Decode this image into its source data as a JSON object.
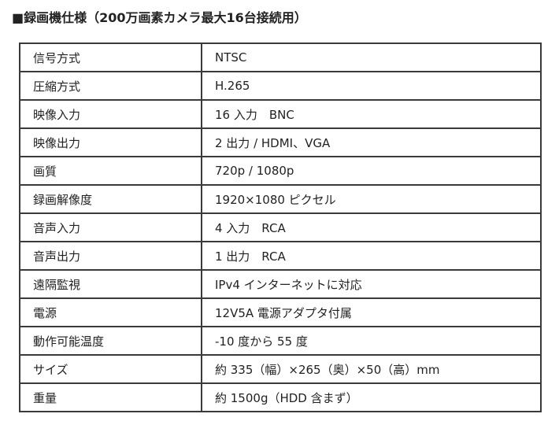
{
  "title": "■録画機仕様（200万画素カメラ最大16台接続用）",
  "specs": [
    {
      "label": "信号方式",
      "value": "NTSC"
    },
    {
      "label": "圧縮方式",
      "value": "H.265"
    },
    {
      "label": "映像入力",
      "value": "16 入力　BNC"
    },
    {
      "label": "映像出力",
      "value": "2 出力 / HDMI、VGA"
    },
    {
      "label": "画質",
      "value": "720p / 1080p"
    },
    {
      "label": "録画解像度",
      "value": "1920×1080 ピクセル"
    },
    {
      "label": "音声入力",
      "value": "4 入力　RCA"
    },
    {
      "label": "音声出力",
      "value": "1 出力　RCA"
    },
    {
      "label": "遠隔監視",
      "value": "IPv4 インターネットに対応"
    },
    {
      "label": "電源",
      "value": "12V5A 電源アダプタ付属"
    },
    {
      "label": "動作可能温度",
      "value": "-10 度から 55 度"
    },
    {
      "label": "サイズ",
      "value": "約 335（幅）×265（奥）×50（高）mm"
    },
    {
      "label": "重量",
      "value": "約 1500g（HDD 含まず）"
    }
  ]
}
